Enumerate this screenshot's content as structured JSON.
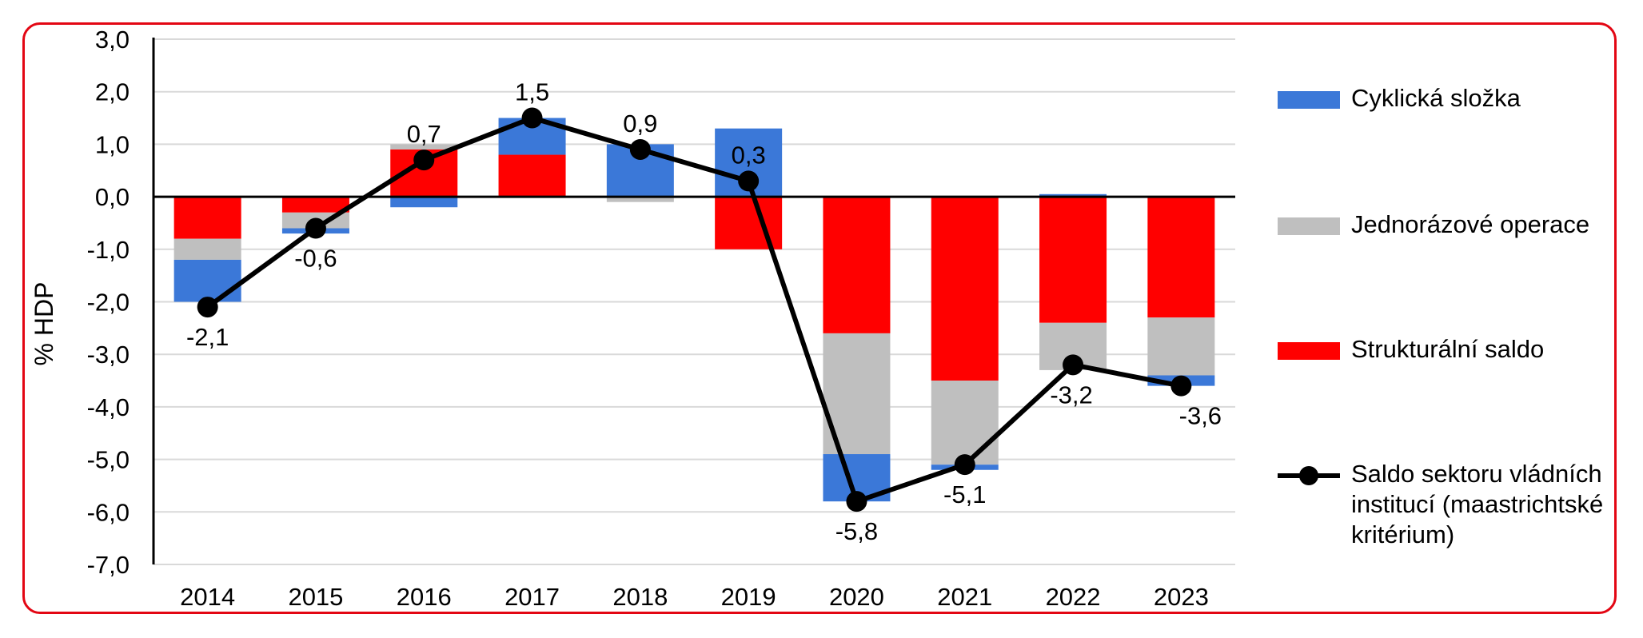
{
  "chart_data": {
    "type": "bar",
    "stacked": true,
    "ylabel": "% HDP",
    "ylim": [
      -7,
      3
    ],
    "yticks": [
      "3,0",
      "2,0",
      "1,0",
      "0,0",
      "-1,0",
      "-2,0",
      "-3,0",
      "-4,0",
      "-5,0",
      "-6,0",
      "-7,0"
    ],
    "grid": true,
    "legend_position": "right",
    "categories": [
      "2014",
      "2015",
      "2016",
      "2017",
      "2018",
      "2019",
      "2020",
      "2021",
      "2022",
      "2023"
    ],
    "series": [
      {
        "name": "Strukturální saldo",
        "kind": "bar",
        "color": "#ff0000",
        "values": [
          -0.8,
          -0.3,
          0.9,
          0.8,
          0.0,
          -1.0,
          -2.6,
          -3.5,
          -2.4,
          -2.3
        ]
      },
      {
        "name": "Jednorázové operace",
        "kind": "bar",
        "color": "#bfbfbf",
        "values": [
          -0.4,
          -0.3,
          0.1,
          0.0,
          -0.1,
          0.0,
          -2.3,
          -1.6,
          -0.9,
          -1.1
        ]
      },
      {
        "name": "Cyklická složka",
        "kind": "bar",
        "color": "#3b78d8",
        "values": [
          -0.8,
          -0.1,
          -0.2,
          0.7,
          1.0,
          1.3,
          -0.9,
          -0.1,
          0.05,
          -0.2
        ]
      },
      {
        "name": "Saldo sektoru vládních institucí (maastrichtské kritérium)",
        "kind": "line",
        "color": "#000000",
        "values": [
          -2.1,
          -0.6,
          0.7,
          1.5,
          0.9,
          0.3,
          -5.8,
          -5.1,
          -3.2,
          -3.6
        ],
        "labels": [
          "-2,1",
          "-0,6",
          "0,7",
          "1,5",
          "0,9",
          "0,3",
          "-5,8",
          "-5,1",
          "-3,2",
          "-3,6"
        ]
      }
    ]
  },
  "legend": {
    "items": [
      {
        "label": "Cyklická složka",
        "color": "#3b78d8"
      },
      {
        "label": "Jednorázové operace",
        "color": "#bfbfbf"
      },
      {
        "label": "Strukturální saldo",
        "color": "#ff0000"
      },
      {
        "label": "Saldo sektoru vládních institucí (maastrichtské kritérium)",
        "color": "#000000"
      }
    ]
  }
}
